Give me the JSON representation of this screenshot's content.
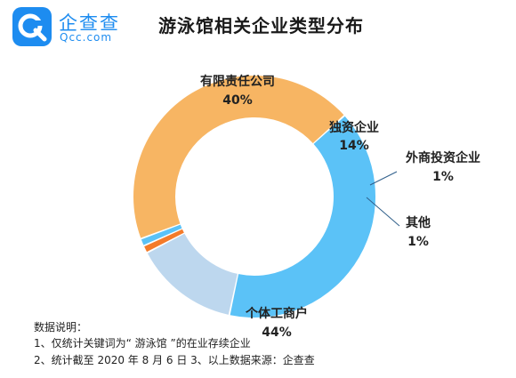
{
  "logo": {
    "name": "企查查",
    "domain": "Qcc.com"
  },
  "chart_data": {
    "type": "pie",
    "title": "游泳馆相关企业类型分布",
    "slices": [
      {
        "label": "有限责任公司",
        "value": 40,
        "value_text": "40%",
        "color": "#5bc2f7"
      },
      {
        "label": "独资企业",
        "value": 14,
        "value_text": "14%",
        "color": "#bdd7ee"
      },
      {
        "label": "外商投资企业",
        "value": 1,
        "value_text": "1%",
        "color": "#f47b2a"
      },
      {
        "label": "其他",
        "value": 1,
        "value_text": "1%",
        "color": "#5bc2f7"
      },
      {
        "label": "个体工商户",
        "value": 44,
        "value_text": "44%",
        "color": "#f7b563"
      }
    ]
  },
  "notes": {
    "heading": "数据说明：",
    "line1": "1、仅统计关键词为“ 游泳馆 ”的在业存续企业",
    "line2": "2、统计截至 2020 年 8 月 6 日  3、以上数据来源：企查查"
  }
}
